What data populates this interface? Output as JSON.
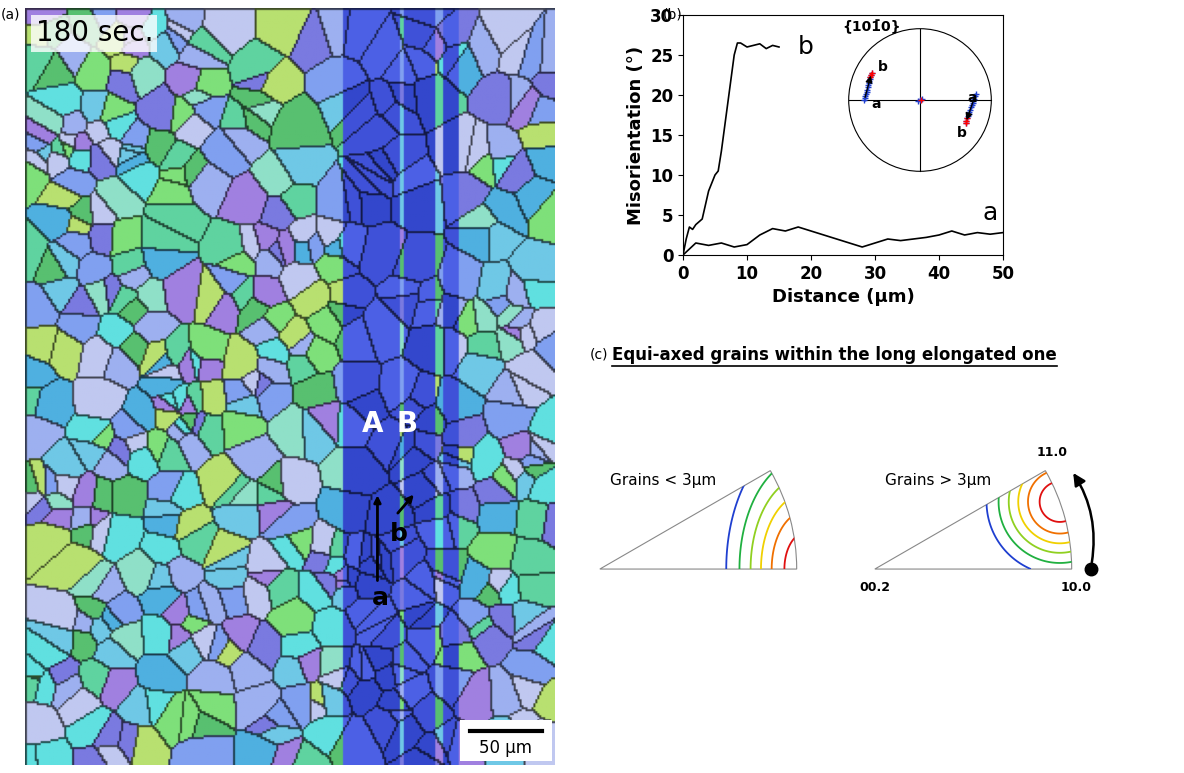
{
  "panel_a": {
    "label": "(a)",
    "time": "180 sec.",
    "grain_labels": [
      "A",
      "B"
    ],
    "profile_labels": [
      "a",
      "b"
    ],
    "scale_bar": "50 µm"
  },
  "chart_data": {
    "type": "line",
    "label": "(b)",
    "xlabel": "Distance (µm)",
    "ylabel": "Misorientation (°)",
    "xlim": [
      0,
      50
    ],
    "ylim": [
      0,
      30
    ],
    "xticks": [
      0,
      10,
      20,
      30,
      40,
      50
    ],
    "yticks": [
      0,
      5,
      10,
      15,
      20,
      25,
      30
    ],
    "color": "#000000",
    "series": [
      {
        "name": "b",
        "x": [
          0,
          0.5,
          1,
          1.5,
          2,
          3,
          4,
          5,
          5.5,
          6,
          7,
          8,
          8.5,
          9,
          10,
          11,
          12,
          13,
          14,
          15
        ],
        "values": [
          0,
          2,
          3.5,
          3.2,
          3.8,
          4.5,
          8,
          10,
          10.5,
          13,
          19,
          25,
          26.5,
          26.5,
          26,
          26.2,
          26.4,
          25.8,
          26.2,
          26
        ]
      },
      {
        "name": "a",
        "x": [
          0,
          2,
          4,
          6,
          8,
          10,
          12,
          14,
          16,
          18,
          20,
          22,
          24,
          26,
          28,
          30,
          32,
          34,
          36,
          38,
          40,
          42,
          44,
          46,
          48,
          50
        ],
        "values": [
          0,
          1.5,
          1.2,
          1.5,
          1,
          1.3,
          2.5,
          3.3,
          3,
          3.5,
          3,
          2.5,
          2,
          1.5,
          1,
          1.5,
          2,
          1.8,
          2,
          2.2,
          2.5,
          3,
          2.5,
          2.8,
          2.6,
          2.8
        ]
      }
    ],
    "inset": {
      "title": "{101̄0}",
      "labels": [
        "a",
        "b"
      ],
      "poles": [
        [
          [
            -0.78,
            0.0
          ],
          [
            -0.68,
            0.38
          ]
        ],
        [
          [
            0.78,
            0.08
          ],
          [
            0.64,
            -0.32
          ]
        ]
      ]
    }
  },
  "panel_c": {
    "label": "(c)",
    "title": "Equi-axed grains within the long elongated one",
    "plots": [
      {
        "title": "Grains < 3µm"
      },
      {
        "title": "Grains > 3µm"
      }
    ],
    "corners": [
      "00.2",
      "10.0",
      "11.0"
    ]
  }
}
